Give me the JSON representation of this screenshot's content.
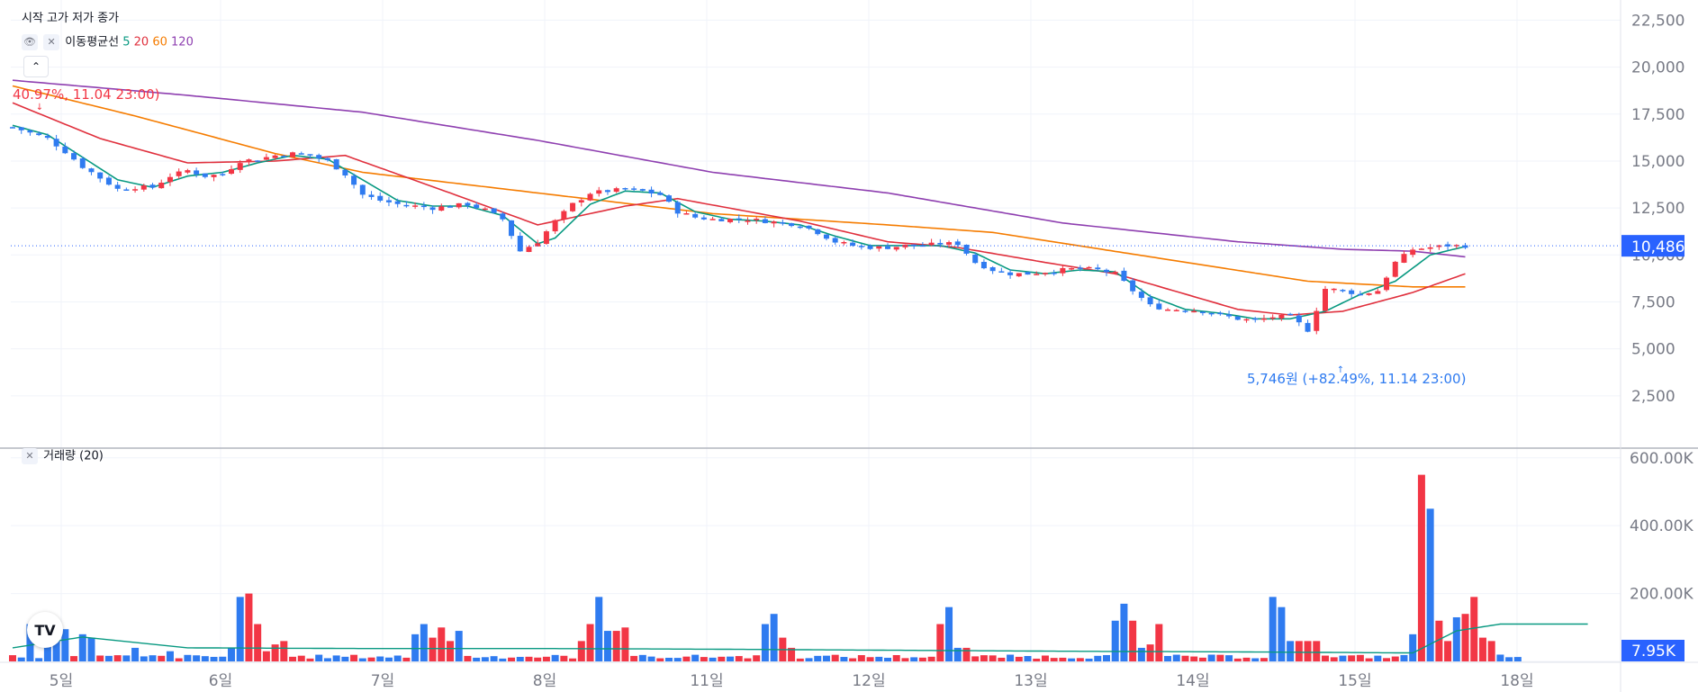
{
  "ohlc_legend": "시작 고가 저가 종가",
  "ma_legend": {
    "title": "이동평균선",
    "p5": "5",
    "p20": "20",
    "p60": "60",
    "p120": "120"
  },
  "volume_legend": "거래량 (20)",
  "colors": {
    "up": "#f23645",
    "down": "#2f7bf0",
    "ma5": "#089981",
    "ma20": "#e0303d",
    "ma60": "#f57c00",
    "ma120": "#8e3fb0",
    "price_line": "#2962ff"
  },
  "icons": {
    "eye": "eye-icon",
    "close": "close-icon",
    "collapse": "chevron-up-icon",
    "logo": "tradingview-logo"
  },
  "logo_text": "TV",
  "chart_data": [
    {
      "type": "candlestick",
      "title": "",
      "x_ticks": [
        "5일",
        "6일",
        "7일",
        "8일",
        "11일",
        "12일",
        "13일",
        "14일",
        "15일",
        "18일"
      ],
      "y_ticks": [
        "2,500",
        "5,000",
        "7,500",
        "10,000",
        "12,500",
        "15,000",
        "17,500",
        "20,000",
        "22,500"
      ],
      "ylim": [
        0,
        23000
      ],
      "last_price_label": "10,486",
      "last_price": 10486,
      "annotations": [
        {
          "text": "40.97%, 11.04 23:00)",
          "at": "high"
        },
        {
          "text": "5,746원 (+82.49%, 11.14 23:00)",
          "at": "low"
        }
      ],
      "anchors": [
        [
          0,
          16800
        ],
        [
          2,
          16500
        ],
        [
          4,
          16200
        ],
        [
          6,
          15500
        ],
        [
          8,
          14700
        ],
        [
          10,
          14100
        ],
        [
          12,
          13500
        ],
        [
          14,
          13600
        ],
        [
          16,
          13600
        ],
        [
          18,
          14200
        ],
        [
          20,
          14500
        ],
        [
          22,
          14200
        ],
        [
          24,
          14300
        ],
        [
          26,
          15000
        ],
        [
          28,
          15100
        ],
        [
          30,
          15300
        ],
        [
          32,
          15400
        ],
        [
          34,
          15300
        ],
        [
          36,
          15000
        ],
        [
          38,
          14300
        ],
        [
          40,
          13200
        ],
        [
          42,
          12900
        ],
        [
          44,
          12700
        ],
        [
          46,
          12600
        ],
        [
          48,
          12500
        ],
        [
          50,
          12600
        ],
        [
          52,
          12700
        ],
        [
          54,
          12400
        ],
        [
          56,
          11900
        ],
        [
          58,
          10200
        ],
        [
          60,
          10700
        ],
        [
          62,
          11800
        ],
        [
          64,
          12700
        ],
        [
          66,
          13300
        ],
        [
          68,
          13400
        ],
        [
          70,
          13500
        ],
        [
          72,
          13400
        ],
        [
          74,
          13200
        ],
        [
          76,
          12300
        ],
        [
          78,
          12000
        ],
        [
          80,
          11900
        ],
        [
          82,
          11900
        ],
        [
          84,
          11900
        ],
        [
          86,
          11800
        ],
        [
          88,
          11700
        ],
        [
          90,
          11600
        ],
        [
          92,
          11200
        ],
        [
          94,
          10700
        ],
        [
          96,
          10500
        ],
        [
          98,
          10400
        ],
        [
          100,
          10400
        ],
        [
          102,
          10500
        ],
        [
          104,
          10500
        ],
        [
          106,
          10600
        ],
        [
          108,
          10600
        ],
        [
          110,
          9600
        ],
        [
          112,
          9200
        ],
        [
          114,
          9000
        ],
        [
          116,
          9000
        ],
        [
          118,
          9100
        ],
        [
          120,
          9200
        ],
        [
          122,
          9300
        ],
        [
          124,
          9200
        ],
        [
          126,
          9000
        ],
        [
          128,
          8100
        ],
        [
          130,
          7300
        ],
        [
          132,
          7100
        ],
        [
          134,
          7100
        ],
        [
          136,
          7000
        ],
        [
          138,
          6800
        ],
        [
          140,
          6600
        ],
        [
          142,
          6500
        ],
        [
          144,
          6700
        ],
        [
          146,
          6700
        ],
        [
          148,
          6000
        ],
        [
          150,
          8200
        ],
        [
          152,
          8100
        ],
        [
          154,
          7900
        ],
        [
          156,
          8100
        ],
        [
          158,
          9600
        ],
        [
          160,
          10300
        ],
        [
          162,
          10400
        ],
        [
          164,
          10500
        ],
        [
          166,
          10486
        ]
      ],
      "ma5_anchors": [
        [
          0,
          16900
        ],
        [
          4,
          16400
        ],
        [
          8,
          15200
        ],
        [
          12,
          14000
        ],
        [
          16,
          13600
        ],
        [
          20,
          14200
        ],
        [
          24,
          14400
        ],
        [
          28,
          14900
        ],
        [
          32,
          15300
        ],
        [
          36,
          15100
        ],
        [
          40,
          14000
        ],
        [
          44,
          12900
        ],
        [
          48,
          12600
        ],
        [
          52,
          12600
        ],
        [
          56,
          12100
        ],
        [
          60,
          10600
        ],
        [
          62,
          10900
        ],
        [
          66,
          12700
        ],
        [
          70,
          13400
        ],
        [
          74,
          13300
        ],
        [
          78,
          12300
        ],
        [
          82,
          11900
        ],
        [
          86,
          11800
        ],
        [
          90,
          11600
        ],
        [
          94,
          11000
        ],
        [
          98,
          10500
        ],
        [
          102,
          10500
        ],
        [
          106,
          10500
        ],
        [
          110,
          10100
        ],
        [
          114,
          9200
        ],
        [
          118,
          9000
        ],
        [
          122,
          9200
        ],
        [
          126,
          9100
        ],
        [
          130,
          7800
        ],
        [
          134,
          7100
        ],
        [
          138,
          6900
        ],
        [
          142,
          6600
        ],
        [
          146,
          6600
        ],
        [
          150,
          7000
        ],
        [
          154,
          7900
        ],
        [
          158,
          8600
        ],
        [
          162,
          10000
        ],
        [
          166,
          10450
        ]
      ],
      "ma20_anchors": [
        [
          0,
          18100
        ],
        [
          10,
          16200
        ],
        [
          20,
          14900
        ],
        [
          30,
          15000
        ],
        [
          38,
          15300
        ],
        [
          50,
          13300
        ],
        [
          60,
          11600
        ],
        [
          70,
          12600
        ],
        [
          76,
          13000
        ],
        [
          90,
          11800
        ],
        [
          100,
          10700
        ],
        [
          108,
          10400
        ],
        [
          118,
          9600
        ],
        [
          126,
          9000
        ],
        [
          140,
          7100
        ],
        [
          146,
          6800
        ],
        [
          152,
          7000
        ],
        [
          160,
          8000
        ],
        [
          166,
          9000
        ]
      ],
      "ma60_anchors": [
        [
          0,
          19000
        ],
        [
          14,
          17400
        ],
        [
          30,
          15400
        ],
        [
          40,
          14400
        ],
        [
          60,
          13300
        ],
        [
          80,
          12200
        ],
        [
          100,
          11600
        ],
        [
          112,
          11200
        ],
        [
          130,
          9900
        ],
        [
          148,
          8600
        ],
        [
          160,
          8300
        ],
        [
          166,
          8300
        ]
      ],
      "ma120_anchors": [
        [
          0,
          19300
        ],
        [
          20,
          18500
        ],
        [
          40,
          17600
        ],
        [
          60,
          16100
        ],
        [
          80,
          14400
        ],
        [
          100,
          13300
        ],
        [
          120,
          11700
        ],
        [
          140,
          10700
        ],
        [
          152,
          10300
        ],
        [
          160,
          10200
        ],
        [
          166,
          9900
        ]
      ]
    },
    {
      "type": "bar",
      "title": "거래량",
      "y_ticks": [
        "200.00K",
        "400.00K",
        "600.00K"
      ],
      "ylim": [
        0,
        610000
      ],
      "last_value_label": "7.95K",
      "ma_period": 20,
      "spikes": [
        [
          2,
          110000,
          "d"
        ],
        [
          4,
          120000,
          "d"
        ],
        [
          5,
          100000,
          "d"
        ],
        [
          6,
          95000,
          "d"
        ],
        [
          8,
          80000,
          "d"
        ],
        [
          9,
          70000,
          "d"
        ],
        [
          14,
          40000,
          "d"
        ],
        [
          18,
          30000,
          "d"
        ],
        [
          25,
          40000,
          "d"
        ],
        [
          26,
          190000,
          "d"
        ],
        [
          27,
          200000,
          "u"
        ],
        [
          28,
          110000,
          "u"
        ],
        [
          29,
          30000,
          "u"
        ],
        [
          30,
          50000,
          "u"
        ],
        [
          31,
          60000,
          "u"
        ],
        [
          46,
          80000,
          "d"
        ],
        [
          47,
          110000,
          "d"
        ],
        [
          48,
          70000,
          "u"
        ],
        [
          49,
          100000,
          "u"
        ],
        [
          50,
          60000,
          "u"
        ],
        [
          51,
          90000,
          "d"
        ],
        [
          65,
          60000,
          "u"
        ],
        [
          66,
          110000,
          "u"
        ],
        [
          67,
          190000,
          "d"
        ],
        [
          68,
          90000,
          "d"
        ],
        [
          69,
          90000,
          "u"
        ],
        [
          70,
          100000,
          "u"
        ],
        [
          86,
          110000,
          "d"
        ],
        [
          87,
          140000,
          "d"
        ],
        [
          88,
          70000,
          "u"
        ],
        [
          89,
          40000,
          "u"
        ],
        [
          106,
          110000,
          "u"
        ],
        [
          107,
          160000,
          "d"
        ],
        [
          108,
          40000,
          "d"
        ],
        [
          109,
          40000,
          "u"
        ],
        [
          126,
          120000,
          "d"
        ],
        [
          127,
          170000,
          "d"
        ],
        [
          128,
          120000,
          "u"
        ],
        [
          129,
          40000,
          "d"
        ],
        [
          130,
          50000,
          "u"
        ],
        [
          131,
          110000,
          "u"
        ],
        [
          144,
          190000,
          "d"
        ],
        [
          145,
          160000,
          "d"
        ],
        [
          146,
          60000,
          "d"
        ],
        [
          147,
          60000,
          "u"
        ],
        [
          148,
          60000,
          "u"
        ],
        [
          149,
          60000,
          "u"
        ],
        [
          160,
          80000,
          "d"
        ],
        [
          161,
          550000,
          "u"
        ],
        [
          162,
          450000,
          "d"
        ],
        [
          163,
          120000,
          "u"
        ],
        [
          164,
          60000,
          "u"
        ],
        [
          165,
          130000,
          "d"
        ],
        [
          166,
          140000,
          "u"
        ],
        [
          167,
          190000,
          "u"
        ],
        [
          168,
          70000,
          "u"
        ],
        [
          169,
          60000,
          "u"
        ],
        [
          170,
          20000,
          "d"
        ]
      ],
      "ma_anchors": [
        [
          0,
          40000
        ],
        [
          8,
          72000
        ],
        [
          20,
          40000
        ],
        [
          40,
          38000
        ],
        [
          60,
          38000
        ],
        [
          80,
          36000
        ],
        [
          100,
          33000
        ],
        [
          120,
          30000
        ],
        [
          140,
          28000
        ],
        [
          160,
          25000
        ],
        [
          165,
          90000
        ],
        [
          170,
          110000
        ],
        [
          180,
          110000
        ]
      ]
    }
  ]
}
